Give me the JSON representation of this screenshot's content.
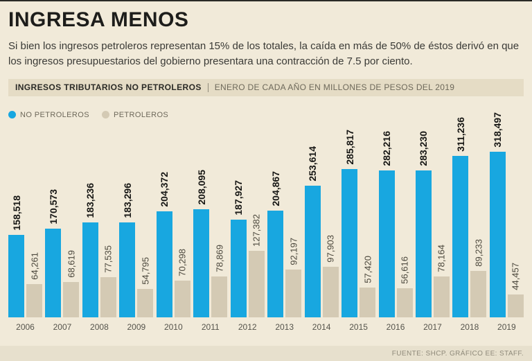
{
  "title": "INGRESA MENOS",
  "intro": "Si bien los ingresos petroleros representan 15% de los totales, la caída en más de 50% de éstos derivó en que los ingresos presupuestarios del gobierno presentara una contracción de 7.5 por ciento.",
  "header": {
    "label": "INGRESOS TRIBUTARIOS NO PETROLEROS",
    "sublabel": "ENERO DE CADA AÑO EN MILLONES DE PESOS DEL 2019"
  },
  "legend": [
    {
      "label": "NO PETROLEROS",
      "color": "#18a7e0"
    },
    {
      "label": "PETROLEROS",
      "color": "#d4cab4"
    }
  ],
  "footer": {
    "source": "FUENTE: SHCP. GRÁFICO EE: STAFF."
  },
  "colors": {
    "background": "#f1ead9",
    "strip": "#e5dcc5",
    "no_petroleros": "#18a7e0",
    "petroleros": "#d4cab4"
  },
  "chart_data": {
    "type": "bar",
    "title": "INGRESOS TRIBUTARIOS NO PETROLEROS",
    "subtitle": "ENERO DE CADA AÑO EN MILLONES DE PESOS DEL 2019",
    "categories": [
      "2006",
      "2007",
      "2008",
      "2009",
      "2010",
      "2011",
      "2012",
      "2013",
      "2014",
      "2015",
      "2016",
      "2017",
      "2018",
      "2019"
    ],
    "series": [
      {
        "name": "NO PETROLEROS",
        "color": "#18a7e0",
        "values": [
          158518,
          170573,
          183236,
          183296,
          204372,
          208095,
          187927,
          204867,
          253614,
          285817,
          282216,
          283230,
          311236,
          318497
        ]
      },
      {
        "name": "PETROLEROS",
        "color": "#d4cab4",
        "values": [
          64261,
          68619,
          77535,
          54795,
          70298,
          78869,
          127382,
          92197,
          97903,
          57420,
          56616,
          78164,
          89233,
          44457
        ]
      }
    ],
    "xlabel": "",
    "ylabel": "Millones de pesos del 2019",
    "ylim": [
      0,
      320000
    ],
    "grid": false,
    "legend_position": "top-left",
    "value_labels": "rotated-vertical-above-bars"
  }
}
